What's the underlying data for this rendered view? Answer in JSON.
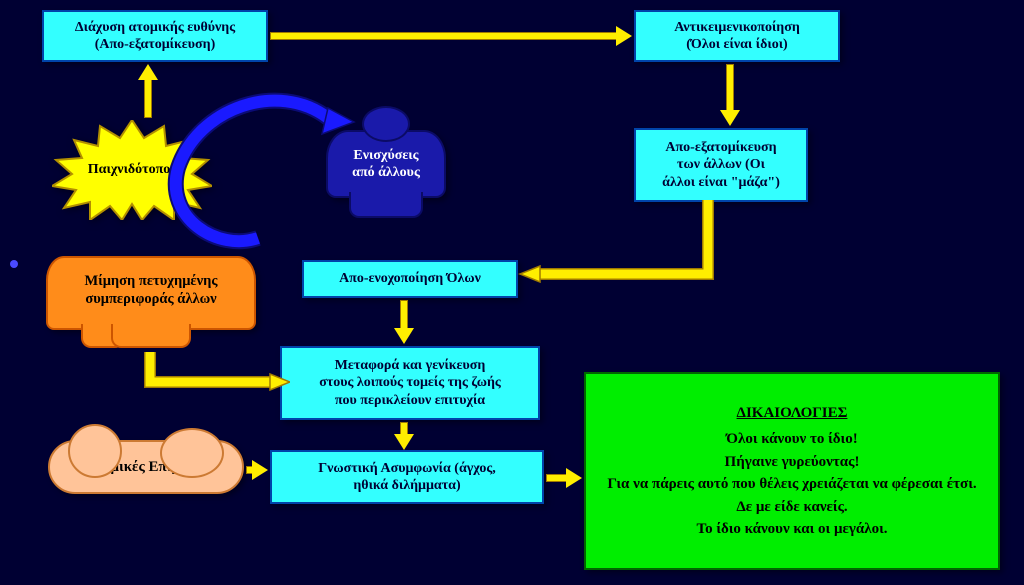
{
  "type": "flowchart",
  "colors": {
    "background": "#000033",
    "box_fill": "#33ffff",
    "box_border": "#0044aa",
    "arrow": "#ffee00",
    "arrow_border": "#a07a00",
    "curved_arrow": "#1a1aff",
    "curved_arrow_border": "#0b0b77",
    "result_fill": "#00ee00",
    "result_border": "#006600",
    "starburst_fill": "#ffff00",
    "starburst_border": "#b28f00",
    "orange_fill": "#ff8c1a",
    "orange_border": "#cc5500",
    "bluefig_fill": "#1a1aaa",
    "bluefig_border": "#0b0b66",
    "cloud_fill": "#ffc499",
    "cloud_border": "#cc7a33"
  },
  "nodes": {
    "diffusion": "Διάχυση ατομικής ευθύνης\n(Απο-εξατομίκευση)",
    "objectification": "Αντικειμενικοποίηση\n(Όλοι είναι ίδιοι)",
    "deindividuation": "Απο-εξατομίκευση\nτων άλλων (Οι\nάλλοι είναι \"μάζα\")",
    "deculpation": "Απο-ενοχοποίηση Όλων",
    "generalization": "Μεταφορά και γενίκευση\nστους λοιπούς τομείς της ζωής\nπου περικλείουν επιτυχία",
    "dissonance": "Γνωστική Ασυμφωνία (άγχος,\nηθικά διλήμματα)",
    "playground": "Παιχνιδότοπος",
    "mimesis": "Μίμηση πετυχημένης\nσυμπεριφοράς άλλων",
    "reinforcement": "Ενισχύσεις\nαπό άλλους",
    "influences": "Θεσμικές Επιρροές"
  },
  "result": {
    "title": "ΔΙΚΑΙΟΛΟΓΙΕΣ",
    "lines": [
      "Όλοι κάνουν το ίδιο!",
      "Πήγαινε γυρεύοντας!",
      "Για να πάρεις αυτό που θέλεις χρειάζεται να φέρεσαι έτσι.",
      "Δε με είδε κανείς.",
      "Το ίδιο κάνουν και οι μεγάλοι."
    ]
  }
}
